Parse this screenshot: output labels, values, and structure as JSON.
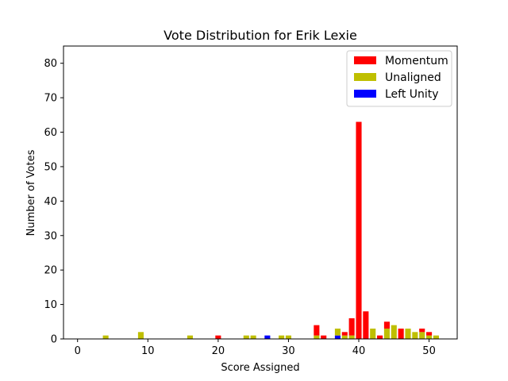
{
  "chart_data": {
    "type": "bar",
    "stacked": true,
    "title": "Vote Distribution for Erik Lexie",
    "xlabel": "Score Assigned",
    "ylabel": "Number of Votes",
    "xlim": [
      -2,
      54
    ],
    "ylim": [
      0,
      85
    ],
    "xticks": [
      0,
      10,
      20,
      30,
      40,
      50
    ],
    "yticks": [
      0,
      10,
      20,
      30,
      40,
      50,
      60,
      70,
      80
    ],
    "grid": false,
    "legend_position": "top-right",
    "series": [
      {
        "name": "Left Unity",
        "color": "#0000ff",
        "points": [
          {
            "x": 27,
            "y": 1
          },
          {
            "x": 37,
            "y": 1
          }
        ]
      },
      {
        "name": "Unaligned",
        "color": "#bfbf00",
        "points": [
          {
            "x": 4,
            "y": 1
          },
          {
            "x": 9,
            "y": 2
          },
          {
            "x": 16,
            "y": 1
          },
          {
            "x": 24,
            "y": 1
          },
          {
            "x": 25,
            "y": 1
          },
          {
            "x": 29,
            "y": 1
          },
          {
            "x": 30,
            "y": 1
          },
          {
            "x": 34,
            "y": 1
          },
          {
            "x": 37,
            "y": 2
          },
          {
            "x": 38,
            "y": 1
          },
          {
            "x": 39,
            "y": 1
          },
          {
            "x": 42,
            "y": 3
          },
          {
            "x": 44,
            "y": 3
          },
          {
            "x": 45,
            "y": 4
          },
          {
            "x": 47,
            "y": 3
          },
          {
            "x": 48,
            "y": 2
          },
          {
            "x": 49,
            "y": 2
          },
          {
            "x": 50,
            "y": 1
          },
          {
            "x": 51,
            "y": 1
          }
        ]
      },
      {
        "name": "Momentum",
        "color": "#ff0000",
        "points": [
          {
            "x": 20,
            "y": 1
          },
          {
            "x": 34,
            "y": 3
          },
          {
            "x": 35,
            "y": 1
          },
          {
            "x": 38,
            "y": 1
          },
          {
            "x": 39,
            "y": 5
          },
          {
            "x": 40,
            "y": 63
          },
          {
            "x": 41,
            "y": 8
          },
          {
            "x": 43,
            "y": 1
          },
          {
            "x": 44,
            "y": 2
          },
          {
            "x": 46,
            "y": 3
          },
          {
            "x": 49,
            "y": 1
          },
          {
            "x": 50,
            "y": 1
          }
        ]
      }
    ],
    "legend_order": [
      "Momentum",
      "Unaligned",
      "Left Unity"
    ]
  }
}
